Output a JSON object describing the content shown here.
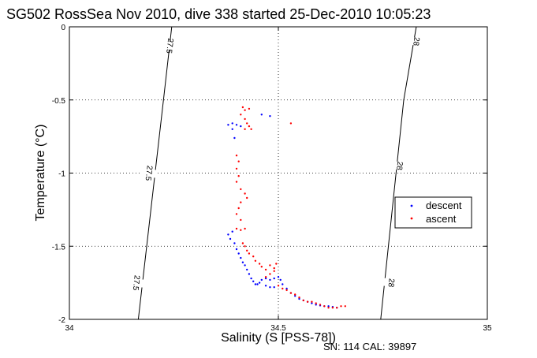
{
  "chart_data": {
    "type": "scatter",
    "title": "SG502 RossSea Nov 2010, dive 338 started 25-Dec-2010 10:05:23",
    "xlabel": "Salinity (S [PSS-78])",
    "ylabel": "Temperature (°C)",
    "xlim": [
      34,
      35
    ],
    "ylim": [
      -2,
      0
    ],
    "xticks": [
      "34",
      "34.5",
      "35"
    ],
    "yticks": [
      "0",
      "-0.5",
      "-1",
      "-1.5",
      "-2"
    ],
    "grid": true,
    "legend": "right",
    "footer": "SN: 114  CAL: 39897",
    "density_contours": [
      {
        "label": "27.5",
        "points": [
          [
            34.165,
            -2.0
          ],
          [
            34.225,
            -0.5
          ],
          [
            34.245,
            0.0
          ]
        ],
        "label_positions": [
          [
            34.16,
            -1.75
          ],
          [
            34.19,
            -1.0
          ],
          [
            34.24,
            -0.13
          ]
        ]
      },
      {
        "label": "28",
        "points": [
          [
            34.745,
            -2.0
          ],
          [
            34.8,
            -0.5
          ],
          [
            34.83,
            0.0
          ]
        ],
        "label_positions": [
          [
            34.77,
            -1.75
          ],
          [
            34.79,
            -0.95
          ],
          [
            34.83,
            -0.1
          ]
        ]
      }
    ],
    "series": [
      {
        "name": "descent",
        "color": "#0000ff",
        "points": [
          [
            34.38,
            -0.67
          ],
          [
            34.39,
            -0.66
          ],
          [
            34.4,
            -0.67
          ],
          [
            34.41,
            -0.68
          ],
          [
            34.39,
            -0.7
          ],
          [
            34.395,
            -0.76
          ],
          [
            34.46,
            -0.6
          ],
          [
            34.48,
            -0.61
          ],
          [
            34.39,
            -1.4
          ],
          [
            34.38,
            -1.42
          ],
          [
            34.385,
            -1.45
          ],
          [
            34.395,
            -1.48
          ],
          [
            34.4,
            -1.52
          ],
          [
            34.405,
            -1.55
          ],
          [
            34.41,
            -1.58
          ],
          [
            34.415,
            -1.61
          ],
          [
            34.42,
            -1.63
          ],
          [
            34.425,
            -1.66
          ],
          [
            34.43,
            -1.69
          ],
          [
            34.435,
            -1.72
          ],
          [
            34.44,
            -1.74
          ],
          [
            34.445,
            -1.76
          ],
          [
            34.45,
            -1.76
          ],
          [
            34.455,
            -1.75
          ],
          [
            34.46,
            -1.73
          ],
          [
            34.47,
            -1.72
          ],
          [
            34.48,
            -1.73
          ],
          [
            34.49,
            -1.72
          ],
          [
            34.5,
            -1.71
          ],
          [
            34.505,
            -1.73
          ],
          [
            34.51,
            -1.76
          ],
          [
            34.52,
            -1.79
          ],
          [
            34.53,
            -1.82
          ],
          [
            34.54,
            -1.84
          ],
          [
            34.55,
            -1.86
          ],
          [
            34.56,
            -1.87
          ],
          [
            34.57,
            -1.88
          ],
          [
            34.58,
            -1.89
          ],
          [
            34.59,
            -1.9
          ],
          [
            34.6,
            -1.905
          ],
          [
            34.61,
            -1.91
          ],
          [
            34.62,
            -1.91
          ],
          [
            34.63,
            -1.915
          ],
          [
            34.64,
            -1.92
          ],
          [
            34.47,
            -1.77
          ],
          [
            34.48,
            -1.78
          ],
          [
            34.49,
            -1.78
          ]
        ]
      },
      {
        "name": "ascent",
        "color": "#ff0000",
        "points": [
          [
            34.415,
            -0.55
          ],
          [
            34.42,
            -0.57
          ],
          [
            34.43,
            -0.56
          ],
          [
            34.41,
            -0.6
          ],
          [
            34.42,
            -0.63
          ],
          [
            34.425,
            -0.66
          ],
          [
            34.43,
            -0.68
          ],
          [
            34.42,
            -0.7
          ],
          [
            34.435,
            -0.7
          ],
          [
            34.53,
            -0.66
          ],
          [
            34.4,
            -0.88
          ],
          [
            34.405,
            -0.92
          ],
          [
            34.4,
            -0.97
          ],
          [
            34.405,
            -1.02
          ],
          [
            34.4,
            -1.06
          ],
          [
            34.41,
            -1.11
          ],
          [
            34.42,
            -1.14
          ],
          [
            34.425,
            -1.17
          ],
          [
            34.41,
            -1.2
          ],
          [
            34.405,
            -1.24
          ],
          [
            34.4,
            -1.28
          ],
          [
            34.41,
            -1.32
          ],
          [
            34.4,
            -1.38
          ],
          [
            34.41,
            -1.39
          ],
          [
            34.42,
            -1.38
          ],
          [
            34.415,
            -1.48
          ],
          [
            34.42,
            -1.5
          ],
          [
            34.425,
            -1.53
          ],
          [
            34.43,
            -1.55
          ],
          [
            34.44,
            -1.57
          ],
          [
            34.445,
            -1.6
          ],
          [
            34.455,
            -1.62
          ],
          [
            34.46,
            -1.64
          ],
          [
            34.47,
            -1.66
          ],
          [
            34.48,
            -1.63
          ],
          [
            34.49,
            -1.65
          ],
          [
            34.495,
            -1.62
          ],
          [
            34.49,
            -1.67
          ],
          [
            34.48,
            -1.69
          ],
          [
            34.47,
            -1.71
          ],
          [
            34.5,
            -1.77
          ],
          [
            34.51,
            -1.79
          ],
          [
            34.52,
            -1.8
          ],
          [
            34.53,
            -1.82
          ],
          [
            34.54,
            -1.83
          ],
          [
            34.55,
            -1.85
          ],
          [
            34.56,
            -1.87
          ],
          [
            34.57,
            -1.88
          ],
          [
            34.58,
            -1.88
          ],
          [
            34.59,
            -1.89
          ],
          [
            34.6,
            -1.9
          ],
          [
            34.61,
            -1.91
          ],
          [
            34.62,
            -1.92
          ],
          [
            34.63,
            -1.92
          ],
          [
            34.64,
            -1.92
          ],
          [
            34.65,
            -1.91
          ],
          [
            34.66,
            -1.91
          ]
        ]
      }
    ]
  }
}
